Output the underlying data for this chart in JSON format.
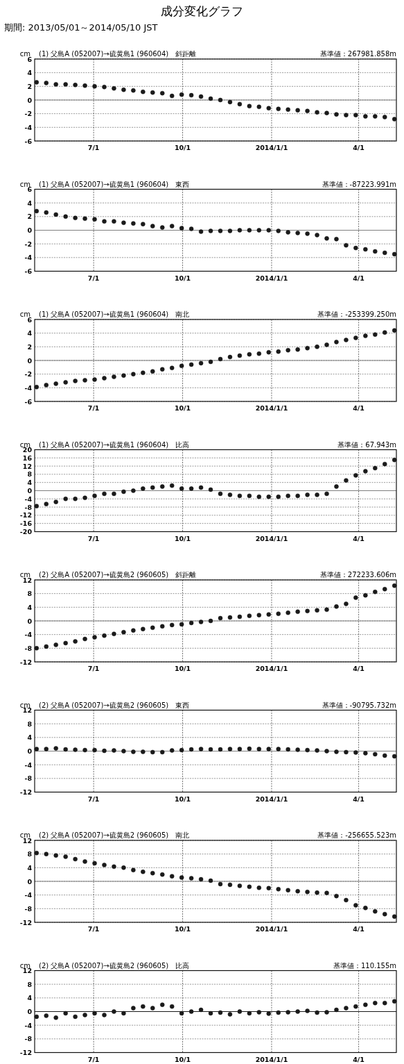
{
  "chart_data": [
    {
      "type": "scatter",
      "title": "(1) 父島A (052007)→硫黄島1 (960604)　斜距離",
      "subtitle": "基準値：267981.858m",
      "ylabel": "cm",
      "annotations": [
        "成分変化グラフ",
        "期間: 2013/05/01～2014/05/10 JST"
      ],
      "marker": "circle",
      "grid": true,
      "xlim": [
        "2013-05-01",
        "2014-05-10"
      ],
      "xticks": [
        {
          "value": "2013-07-01",
          "label": "7/1"
        },
        {
          "value": "2013-10-01",
          "label": "10/1"
        },
        {
          "value": "2014-01-01",
          "label": "2014/1/1"
        },
        {
          "value": "2014-04-01",
          "label": "4/1"
        }
      ],
      "ylim": [
        -6,
        6
      ],
      "yticks": [
        -6,
        -4,
        -2,
        0,
        2,
        4,
        6
      ],
      "ref_lines": [
        {
          "axis": "y",
          "value": 0,
          "color": "#808080",
          "line_style": "solid"
        }
      ],
      "x": [
        "2013-05-03",
        "2013-05-13",
        "2013-05-23",
        "2013-06-02",
        "2013-06-12",
        "2013-06-22",
        "2013-07-02",
        "2013-07-12",
        "2013-07-22",
        "2013-08-01",
        "2013-08-11",
        "2013-08-21",
        "2013-08-31",
        "2013-09-10",
        "2013-09-20",
        "2013-09-30",
        "2013-10-10",
        "2013-10-20",
        "2013-10-30",
        "2013-11-09",
        "2013-11-19",
        "2013-11-29",
        "2013-12-09",
        "2013-12-19",
        "2013-12-29",
        "2014-01-08",
        "2014-01-18",
        "2014-01-28",
        "2014-02-07",
        "2014-02-17",
        "2014-02-27",
        "2014-03-09",
        "2014-03-19",
        "2014-03-29",
        "2014-04-08",
        "2014-04-18",
        "2014-04-28",
        "2014-05-08"
      ],
      "series": [
        {
          "color": "#1a1a1a",
          "values": [
            2.6,
            2.5,
            2.3,
            2.3,
            2.2,
            2.1,
            2.0,
            1.9,
            1.7,
            1.5,
            1.4,
            1.2,
            1.1,
            1.0,
            0.6,
            0.8,
            0.7,
            0.5,
            0.2,
            0.0,
            -0.3,
            -0.6,
            -0.9,
            -1.0,
            -1.2,
            -1.3,
            -1.4,
            -1.5,
            -1.6,
            -1.8,
            -1.9,
            -2.1,
            -2.2,
            -2.2,
            -2.4,
            -2.4,
            -2.5,
            -2.8
          ]
        }
      ]
    },
    {
      "type": "scatter",
      "title": "(1) 父島A (052007)→硫黄島1 (960604)　東西",
      "subtitle": "基準値：-87223.991m",
      "ylabel": "cm",
      "marker": "circle",
      "grid": true,
      "xlim": [
        "2013-05-01",
        "2014-05-10"
      ],
      "xticks": [
        {
          "value": "2013-07-01",
          "label": "7/1"
        },
        {
          "value": "2013-10-01",
          "label": "10/1"
        },
        {
          "value": "2014-01-01",
          "label": "2014/1/1"
        },
        {
          "value": "2014-04-01",
          "label": "4/1"
        }
      ],
      "ylim": [
        -6,
        6
      ],
      "yticks": [
        -6,
        -4,
        -2,
        0,
        2,
        4,
        6
      ],
      "ref_lines": [
        {
          "axis": "y",
          "value": 0,
          "color": "#808080",
          "line_style": "solid"
        }
      ],
      "x": [
        "2013-05-03",
        "2013-05-13",
        "2013-05-23",
        "2013-06-02",
        "2013-06-12",
        "2013-06-22",
        "2013-07-02",
        "2013-07-12",
        "2013-07-22",
        "2013-08-01",
        "2013-08-11",
        "2013-08-21",
        "2013-08-31",
        "2013-09-10",
        "2013-09-20",
        "2013-09-30",
        "2013-10-10",
        "2013-10-20",
        "2013-10-30",
        "2013-11-09",
        "2013-11-19",
        "2013-11-29",
        "2013-12-09",
        "2013-12-19",
        "2013-12-29",
        "2014-01-08",
        "2014-01-18",
        "2014-01-28",
        "2014-02-07",
        "2014-02-17",
        "2014-02-27",
        "2014-03-09",
        "2014-03-19",
        "2014-03-29",
        "2014-04-08",
        "2014-04-18",
        "2014-04-28",
        "2014-05-08"
      ],
      "series": [
        {
          "color": "#1a1a1a",
          "values": [
            2.8,
            2.6,
            2.3,
            2.0,
            1.8,
            1.7,
            1.6,
            1.3,
            1.3,
            1.1,
            1.0,
            0.9,
            0.6,
            0.4,
            0.6,
            0.3,
            0.2,
            -0.2,
            -0.1,
            -0.1,
            -0.1,
            0.0,
            0.0,
            0.0,
            0.0,
            -0.1,
            -0.3,
            -0.4,
            -0.5,
            -0.7,
            -1.2,
            -1.3,
            -2.2,
            -2.6,
            -2.8,
            -3.1,
            -3.3,
            -3.5
          ]
        }
      ]
    },
    {
      "type": "scatter",
      "title": "(1) 父島A (052007)→硫黄島1 (960604)　南北",
      "subtitle": "基準値：-253399.250m",
      "ylabel": "cm",
      "marker": "circle",
      "grid": true,
      "xlim": [
        "2013-05-01",
        "2014-05-10"
      ],
      "xticks": [
        {
          "value": "2013-07-01",
          "label": "7/1"
        },
        {
          "value": "2013-10-01",
          "label": "10/1"
        },
        {
          "value": "2014-01-01",
          "label": "2014/1/1"
        },
        {
          "value": "2014-04-01",
          "label": "4/1"
        }
      ],
      "ylim": [
        -6,
        6
      ],
      "yticks": [
        -6,
        -4,
        -2,
        0,
        2,
        4,
        6
      ],
      "ref_lines": [
        {
          "axis": "y",
          "value": 0,
          "color": "#808080",
          "line_style": "solid"
        }
      ],
      "x": [
        "2013-05-03",
        "2013-05-13",
        "2013-05-23",
        "2013-06-02",
        "2013-06-12",
        "2013-06-22",
        "2013-07-02",
        "2013-07-12",
        "2013-07-22",
        "2013-08-01",
        "2013-08-11",
        "2013-08-21",
        "2013-08-31",
        "2013-09-10",
        "2013-09-20",
        "2013-09-30",
        "2013-10-10",
        "2013-10-20",
        "2013-10-30",
        "2013-11-09",
        "2013-11-19",
        "2013-11-29",
        "2013-12-09",
        "2013-12-19",
        "2013-12-29",
        "2014-01-08",
        "2014-01-18",
        "2014-01-28",
        "2014-02-07",
        "2014-02-17",
        "2014-02-27",
        "2014-03-09",
        "2014-03-19",
        "2014-03-29",
        "2014-04-08",
        "2014-04-18",
        "2014-04-28",
        "2014-05-08"
      ],
      "series": [
        {
          "color": "#1a1a1a",
          "values": [
            -3.9,
            -3.6,
            -3.4,
            -3.2,
            -3.0,
            -2.9,
            -2.8,
            -2.6,
            -2.4,
            -2.2,
            -2.0,
            -1.8,
            -1.6,
            -1.3,
            -1.1,
            -0.8,
            -0.6,
            -0.4,
            -0.2,
            0.2,
            0.5,
            0.7,
            0.9,
            1.0,
            1.2,
            1.3,
            1.5,
            1.6,
            1.8,
            2.0,
            2.3,
            2.7,
            3.0,
            3.3,
            3.6,
            3.8,
            4.1,
            4.4
          ]
        }
      ]
    },
    {
      "type": "scatter",
      "title": "(1) 父島A (052007)→硫黄島1 (960604)　比高",
      "subtitle": "基準値：67.943m",
      "ylabel": "cm",
      "marker": "circle",
      "grid": true,
      "xlim": [
        "2013-05-01",
        "2014-05-10"
      ],
      "xticks": [
        {
          "value": "2013-07-01",
          "label": "7/1"
        },
        {
          "value": "2013-10-01",
          "label": "10/1"
        },
        {
          "value": "2014-01-01",
          "label": "2014/1/1"
        },
        {
          "value": "2014-04-01",
          "label": "4/1"
        }
      ],
      "ylim": [
        -20,
        20
      ],
      "yticks": [
        -20,
        -16,
        -12,
        -8,
        -4,
        0,
        4,
        8,
        12,
        16,
        20
      ],
      "ref_lines": [
        {
          "axis": "y",
          "value": 0,
          "color": "#808080",
          "line_style": "solid"
        }
      ],
      "x": [
        "2013-05-03",
        "2013-05-13",
        "2013-05-23",
        "2013-06-02",
        "2013-06-12",
        "2013-06-22",
        "2013-07-02",
        "2013-07-12",
        "2013-07-22",
        "2013-08-01",
        "2013-08-11",
        "2013-08-21",
        "2013-08-31",
        "2013-09-10",
        "2013-09-20",
        "2013-09-30",
        "2013-10-10",
        "2013-10-20",
        "2013-10-30",
        "2013-11-09",
        "2013-11-19",
        "2013-11-29",
        "2013-12-09",
        "2013-12-19",
        "2013-12-29",
        "2014-01-08",
        "2014-01-18",
        "2014-01-28",
        "2014-02-07",
        "2014-02-17",
        "2014-02-27",
        "2014-03-09",
        "2014-03-19",
        "2014-03-29",
        "2014-04-08",
        "2014-04-18",
        "2014-04-28",
        "2014-05-08"
      ],
      "series": [
        {
          "color": "#1a1a1a",
          "values": [
            -7.5,
            -6.5,
            -5.5,
            -4,
            -4,
            -3.5,
            -2.5,
            -1.5,
            -1.5,
            -0.5,
            0,
            1,
            1.5,
            2,
            2.5,
            1,
            1,
            1.5,
            0.5,
            -1.5,
            -2,
            -2.5,
            -2.5,
            -3,
            -3,
            -3,
            -2.5,
            -2.5,
            -2,
            -2,
            -1.5,
            2,
            5,
            7.5,
            9.5,
            11,
            13,
            15
          ]
        }
      ]
    },
    {
      "type": "scatter",
      "title": "(2) 父島A (052007)→硫黄島2 (960605)　斜距離",
      "subtitle": "基準値：272233.606m",
      "ylabel": "cm",
      "marker": "circle",
      "grid": true,
      "xlim": [
        "2013-05-01",
        "2014-05-10"
      ],
      "xticks": [
        {
          "value": "2013-07-01",
          "label": "7/1"
        },
        {
          "value": "2013-10-01",
          "label": "10/1"
        },
        {
          "value": "2014-01-01",
          "label": "2014/1/1"
        },
        {
          "value": "2014-04-01",
          "label": "4/1"
        }
      ],
      "ylim": [
        -12,
        12
      ],
      "yticks": [
        -12,
        -8,
        -4,
        0,
        4,
        8,
        12
      ],
      "ref_lines": [
        {
          "axis": "y",
          "value": 0,
          "color": "#808080",
          "line_style": "solid"
        }
      ],
      "x": [
        "2013-05-03",
        "2013-05-13",
        "2013-05-23",
        "2013-06-02",
        "2013-06-12",
        "2013-06-22",
        "2013-07-02",
        "2013-07-12",
        "2013-07-22",
        "2013-08-01",
        "2013-08-11",
        "2013-08-21",
        "2013-08-31",
        "2013-09-10",
        "2013-09-20",
        "2013-09-30",
        "2013-10-10",
        "2013-10-20",
        "2013-10-30",
        "2013-11-09",
        "2013-11-19",
        "2013-11-29",
        "2013-12-09",
        "2013-12-19",
        "2013-12-29",
        "2014-01-08",
        "2014-01-18",
        "2014-01-28",
        "2014-02-07",
        "2014-02-17",
        "2014-02-27",
        "2014-03-09",
        "2014-03-19",
        "2014-03-29",
        "2014-04-08",
        "2014-04-18",
        "2014-04-28",
        "2014-05-08"
      ],
      "series": [
        {
          "color": "#1a1a1a",
          "values": [
            -8,
            -7.5,
            -7,
            -6.5,
            -6,
            -5.3,
            -4.8,
            -4.3,
            -3.8,
            -3.3,
            -2.8,
            -2.4,
            -2,
            -1.6,
            -1.2,
            -1,
            -0.6,
            -0.3,
            0,
            0.8,
            1,
            1.2,
            1.5,
            1.7,
            1.9,
            2.1,
            2.4,
            2.7,
            2.9,
            3.1,
            3.3,
            4.2,
            5,
            6.8,
            7.5,
            8.5,
            9.3,
            10.3
          ]
        }
      ]
    },
    {
      "type": "scatter",
      "title": "(2) 父島A (052007)→硫黄島2 (960605)　東西",
      "subtitle": "基準値：-90795.732m",
      "ylabel": "cm",
      "marker": "circle",
      "grid": true,
      "xlim": [
        "2013-05-01",
        "2014-05-10"
      ],
      "xticks": [
        {
          "value": "2013-07-01",
          "label": "7/1"
        },
        {
          "value": "2013-10-01",
          "label": "10/1"
        },
        {
          "value": "2014-01-01",
          "label": "2014/1/1"
        },
        {
          "value": "2014-04-01",
          "label": "4/1"
        }
      ],
      "ylim": [
        -12,
        12
      ],
      "yticks": [
        -12,
        -8,
        -4,
        0,
        4,
        8,
        12
      ],
      "ref_lines": [
        {
          "axis": "y",
          "value": 0,
          "color": "#808080",
          "line_style": "solid"
        }
      ],
      "x": [
        "2013-05-03",
        "2013-05-13",
        "2013-05-23",
        "2013-06-02",
        "2013-06-12",
        "2013-06-22",
        "2013-07-02",
        "2013-07-12",
        "2013-07-22",
        "2013-08-01",
        "2013-08-11",
        "2013-08-21",
        "2013-08-31",
        "2013-09-10",
        "2013-09-20",
        "2013-09-30",
        "2013-10-10",
        "2013-10-20",
        "2013-10-30",
        "2013-11-09",
        "2013-11-19",
        "2013-11-29",
        "2013-12-09",
        "2013-12-19",
        "2013-12-29",
        "2014-01-08",
        "2014-01-18",
        "2014-01-28",
        "2014-02-07",
        "2014-02-17",
        "2014-02-27",
        "2014-03-09",
        "2014-03-19",
        "2014-03-29",
        "2014-04-08",
        "2014-04-18",
        "2014-04-28",
        "2014-05-08"
      ],
      "series": [
        {
          "color": "#1a1a1a",
          "values": [
            0.6,
            0.6,
            0.8,
            0.5,
            0.4,
            0.3,
            0.3,
            0.1,
            0.2,
            0,
            -0.2,
            -0.2,
            -0.3,
            -0.3,
            0.2,
            0.3,
            0.5,
            0.6,
            0.5,
            0.5,
            0.6,
            0.6,
            0.7,
            0.6,
            0.6,
            0.6,
            0.5,
            0.4,
            0.3,
            0.2,
            0,
            -0.2,
            -0.3,
            -0.4,
            -0.6,
            -0.9,
            -1.3,
            -1.5
          ]
        }
      ]
    },
    {
      "type": "scatter",
      "title": "(2) 父島A (052007)→硫黄島2 (960605)　南北",
      "subtitle": "基準値：-256655.523m",
      "ylabel": "cm",
      "marker": "circle",
      "grid": true,
      "xlim": [
        "2013-05-01",
        "2014-05-10"
      ],
      "xticks": [
        {
          "value": "2013-07-01",
          "label": "7/1"
        },
        {
          "value": "2013-10-01",
          "label": "10/1"
        },
        {
          "value": "2014-01-01",
          "label": "2014/1/1"
        },
        {
          "value": "2014-04-01",
          "label": "4/1"
        }
      ],
      "ylim": [
        -12,
        12
      ],
      "yticks": [
        -12,
        -8,
        -4,
        0,
        4,
        8,
        12
      ],
      "ref_lines": [
        {
          "axis": "y",
          "value": 0,
          "color": "#808080",
          "line_style": "solid"
        }
      ],
      "x": [
        "2013-05-03",
        "2013-05-13",
        "2013-05-23",
        "2013-06-02",
        "2013-06-12",
        "2013-06-22",
        "2013-07-02",
        "2013-07-12",
        "2013-07-22",
        "2013-08-01",
        "2013-08-11",
        "2013-08-21",
        "2013-08-31",
        "2013-09-10",
        "2013-09-20",
        "2013-09-30",
        "2013-10-10",
        "2013-10-20",
        "2013-10-30",
        "2013-11-09",
        "2013-11-19",
        "2013-11-29",
        "2013-12-09",
        "2013-12-19",
        "2013-12-29",
        "2014-01-08",
        "2014-01-18",
        "2014-01-28",
        "2014-02-07",
        "2014-02-17",
        "2014-02-27",
        "2014-03-09",
        "2014-03-19",
        "2014-03-29",
        "2014-04-08",
        "2014-04-18",
        "2014-04-28",
        "2014-05-08"
      ],
      "series": [
        {
          "color": "#1a1a1a",
          "values": [
            8.3,
            8,
            7.6,
            7.2,
            6.5,
            5.8,
            5.3,
            4.8,
            4.3,
            4,
            3.3,
            2.8,
            2.4,
            2,
            1.5,
            1.1,
            0.9,
            0.6,
            0.2,
            -0.8,
            -1,
            -1.3,
            -1.6,
            -1.9,
            -2,
            -2.3,
            -2.6,
            -2.9,
            -3.1,
            -3.3,
            -3.4,
            -4.3,
            -5.5,
            -7,
            -7.8,
            -8.8,
            -9.6,
            -10.3
          ]
        }
      ]
    },
    {
      "type": "scatter",
      "title": "(2) 父島A (052007)→硫黄島2 (960605)　比高",
      "subtitle": "基準値：110.155m",
      "ylabel": "cm",
      "marker": "circle",
      "grid": true,
      "xlim": [
        "2013-05-01",
        "2014-05-10"
      ],
      "xticks": [
        {
          "value": "2013-07-01",
          "label": "7/1"
        },
        {
          "value": "2013-10-01",
          "label": "10/1"
        },
        {
          "value": "2014-01-01",
          "label": "2014/1/1"
        },
        {
          "value": "2014-04-01",
          "label": "4/1"
        }
      ],
      "ylim": [
        -12,
        12
      ],
      "yticks": [
        -12,
        -8,
        -4,
        0,
        4,
        8,
        12
      ],
      "ref_lines": [
        {
          "axis": "y",
          "value": 0,
          "color": "#1a1a1a",
          "line_style": "solid"
        }
      ],
      "x": [
        "2013-05-03",
        "2013-05-13",
        "2013-05-23",
        "2013-06-02",
        "2013-06-12",
        "2013-06-22",
        "2013-07-02",
        "2013-07-12",
        "2013-07-22",
        "2013-08-01",
        "2013-08-11",
        "2013-08-21",
        "2013-08-31",
        "2013-09-10",
        "2013-09-20",
        "2013-09-30",
        "2013-10-10",
        "2013-10-20",
        "2013-10-30",
        "2013-11-09",
        "2013-11-19",
        "2013-11-29",
        "2013-12-09",
        "2013-12-19",
        "2013-12-29",
        "2014-01-08",
        "2014-01-18",
        "2014-01-28",
        "2014-02-07",
        "2014-02-17",
        "2014-02-27",
        "2014-03-09",
        "2014-03-19",
        "2014-03-29",
        "2014-04-08",
        "2014-04-18",
        "2014-04-28",
        "2014-05-08"
      ],
      "series": [
        {
          "color": "#1a1a1a",
          "values": [
            -1.5,
            -1.2,
            -1.8,
            -0.5,
            -1.5,
            -1,
            -0.5,
            -1,
            0,
            -0.5,
            1,
            1.5,
            1,
            2,
            1.5,
            -0.5,
            0,
            0.5,
            -0.5,
            -0.3,
            -0.8,
            0,
            -0.5,
            -0.2,
            -0.6,
            -0.3,
            -0.2,
            0,
            0.2,
            -0.3,
            -0.2,
            0.5,
            1,
            1.5,
            2,
            2.5,
            2.5,
            3
          ]
        }
      ]
    }
  ]
}
